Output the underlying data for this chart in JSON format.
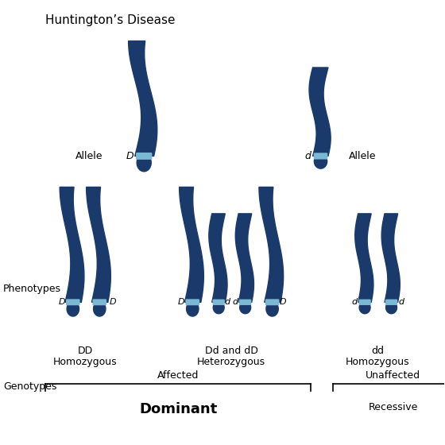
{
  "title": "Huntington’s Disease",
  "dark_blue": "#1a3a6b",
  "light_blue": "#7ab8d4",
  "bg_color": "#ffffff",
  "text_color": "#000000",
  "allele_D_label": "Allele",
  "allele_d_label": "Allele",
  "allele_D_letter": "D",
  "allele_d_letter": "d",
  "genotype_labels": [
    "DD\nHomozygous",
    "Dd and dD\nHeterozygous",
    "dd\nHomozygous"
  ],
  "phenotype_label": "Phenotypes",
  "affected_label": "Affected",
  "dominant_label": "Dominant",
  "unaffected_label": "Unaffected",
  "recessive_label": "Recessive"
}
